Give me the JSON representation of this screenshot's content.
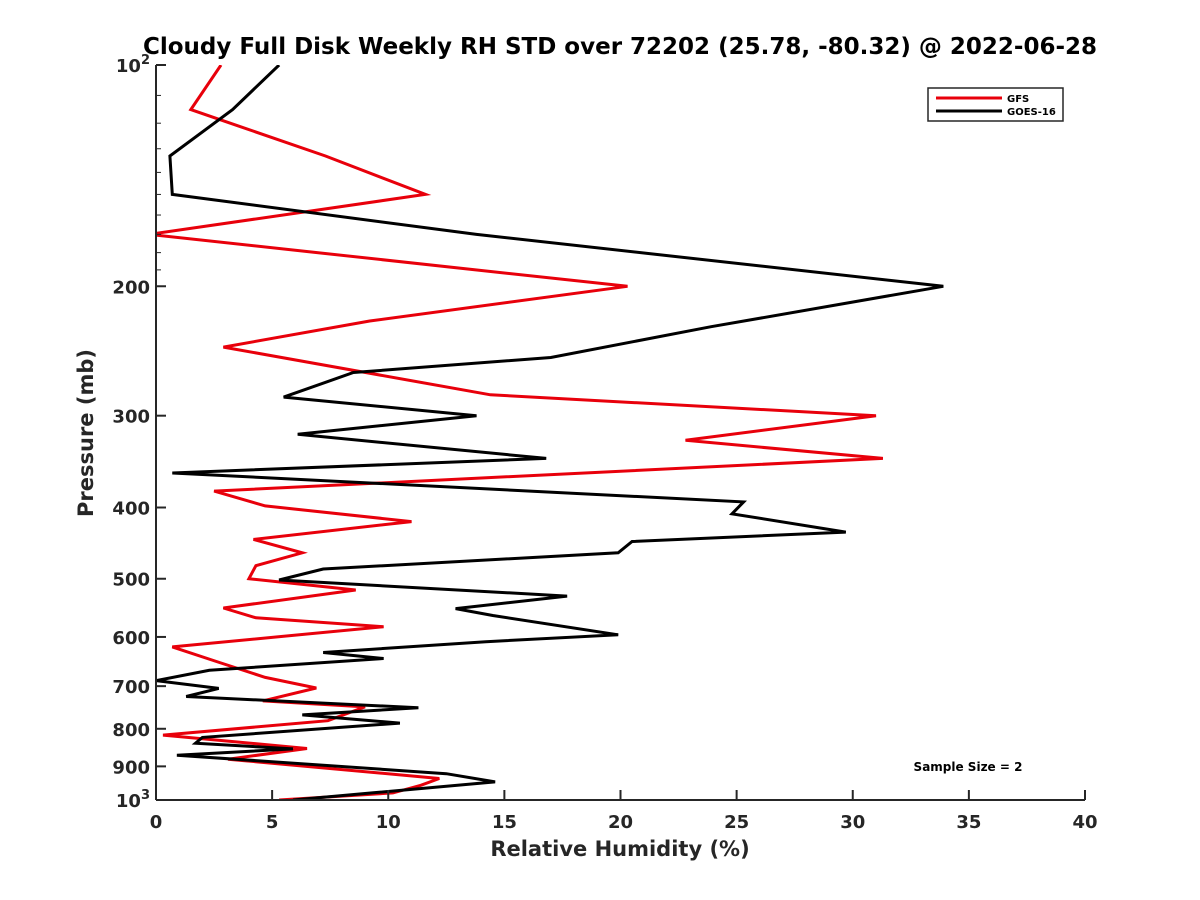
{
  "chart_data": {
    "type": "line",
    "title": "Cloudy Full Disk Weekly RH STD over 72202 (25.78, -80.32) @ 2022-06-28",
    "xlabel": "Relative Humidity (%)",
    "ylabel": "Pressure (mb)",
    "xlim": [
      0,
      40
    ],
    "ylim": [
      100,
      1000
    ],
    "y_scale": "log",
    "y_reversed": true,
    "x_ticks": [
      0,
      5,
      10,
      15,
      20,
      25,
      30,
      35,
      40
    ],
    "y_ticks": [
      {
        "value": 100,
        "base": "10",
        "exp": "2"
      },
      {
        "value": 200,
        "label": "200"
      },
      {
        "value": 300,
        "label": "300"
      },
      {
        "value": 400,
        "label": "400"
      },
      {
        "value": 500,
        "label": "500"
      },
      {
        "value": 600,
        "label": "600"
      },
      {
        "value": 700,
        "label": "700"
      },
      {
        "value": 800,
        "label": "800"
      },
      {
        "value": 900,
        "label": "900"
      },
      {
        "value": 1000,
        "base": "10",
        "exp": "3"
      }
    ],
    "grid": false,
    "legend_position": "top-right",
    "series": [
      {
        "name": "GFS",
        "color": "#e8000b",
        "points": [
          [
            2.8,
            100
          ],
          [
            1.5,
            115
          ],
          [
            7.3,
            133
          ],
          [
            11.6,
            150
          ],
          [
            -0.3,
            170
          ],
          [
            20.3,
            200
          ],
          [
            9.2,
            223
          ],
          [
            2.9,
            242
          ],
          [
            14.4,
            281
          ],
          [
            31.0,
            300
          ],
          [
            22.8,
            324
          ],
          [
            31.3,
            343
          ],
          [
            2.5,
            380
          ],
          [
            4.7,
            398
          ],
          [
            11.0,
            418
          ],
          [
            4.2,
            442
          ],
          [
            6.3,
            461
          ],
          [
            4.3,
            480
          ],
          [
            4.0,
            500
          ],
          [
            8.6,
            518
          ],
          [
            2.9,
            548
          ],
          [
            4.3,
            565
          ],
          [
            9.8,
            581
          ],
          [
            0.7,
            619
          ],
          [
            2.8,
            651
          ],
          [
            4.7,
            681
          ],
          [
            6.9,
            704
          ],
          [
            4.6,
            733
          ],
          [
            9.0,
            747
          ],
          [
            7.4,
            780
          ],
          [
            0.3,
            816
          ],
          [
            6.5,
            851
          ],
          [
            3.1,
            880
          ],
          [
            12.2,
            935
          ],
          [
            11.4,
            955
          ],
          [
            10.2,
            978
          ],
          [
            5.3,
            1000
          ]
        ]
      },
      {
        "name": "GOES-16",
        "color": "#000000",
        "points": [
          [
            5.3,
            100
          ],
          [
            3.3,
            115
          ],
          [
            0.6,
            133
          ],
          [
            0.7,
            150
          ],
          [
            13.8,
            170
          ],
          [
            33.9,
            200
          ],
          [
            23.9,
            227
          ],
          [
            17.0,
            250
          ],
          [
            8.5,
            262
          ],
          [
            5.5,
            283
          ],
          [
            13.8,
            300
          ],
          [
            6.1,
            318
          ],
          [
            16.8,
            343
          ],
          [
            0.7,
            359
          ],
          [
            25.3,
            393
          ],
          [
            24.8,
            408
          ],
          [
            29.7,
            432
          ],
          [
            20.5,
            445
          ],
          [
            19.9,
            461
          ],
          [
            7.2,
            485
          ],
          [
            5.3,
            502
          ],
          [
            17.7,
            528
          ],
          [
            12.9,
            549
          ],
          [
            14.5,
            561
          ],
          [
            19.9,
            596
          ],
          [
            14.2,
            609
          ],
          [
            7.2,
            630
          ],
          [
            9.8,
            642
          ],
          [
            2.3,
            666
          ],
          [
            0.0,
            688
          ],
          [
            2.7,
            705
          ],
          [
            1.3,
            723
          ],
          [
            11.3,
            749
          ],
          [
            6.3,
            766
          ],
          [
            10.5,
            786
          ],
          [
            2.0,
            822
          ],
          [
            1.7,
            837
          ],
          [
            5.9,
            852
          ],
          [
            0.9,
            869
          ],
          [
            12.5,
            921
          ],
          [
            14.6,
            945
          ],
          [
            9.3,
            978
          ],
          [
            5.9,
            1000
          ]
        ]
      }
    ],
    "annotation": "Sample Size = 2"
  }
}
